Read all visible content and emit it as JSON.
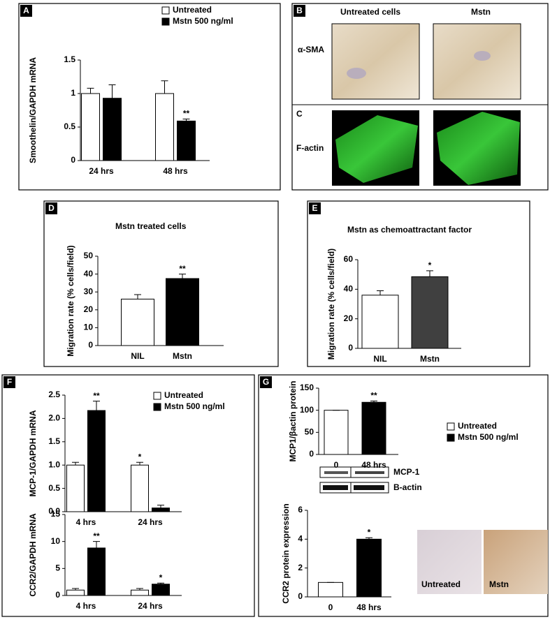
{
  "chart_data": [
    {
      "type": "bar",
      "ylabel": "Smoothelin/GAPDH mRNA",
      "categories": [
        "24 hrs",
        "48 hrs"
      ],
      "series": [
        {
          "name": "Untreated",
          "color": "#ffffff",
          "values": [
            1,
            1
          ],
          "errors": [
            0.08,
            0.19
          ],
          "stars": [
            null,
            null
          ]
        },
        {
          "name": "Mstn  500 ng/ml",
          "color": "#000000",
          "values": [
            0.93,
            0.59
          ],
          "errors": [
            0.2,
            0.03
          ],
          "stars": [
            null,
            "**"
          ]
        }
      ],
      "ylim": [
        0,
        1.5
      ],
      "yticks": [
        0,
        0.5,
        1,
        1.5
      ]
    },
    {
      "type": "bar",
      "title": "Mstn  treated cells",
      "ylabel": "Migration rate (% cells/field)",
      "categories": [
        "NIL",
        "Mstn"
      ],
      "values": [
        26,
        37.5
      ],
      "errors": [
        2.5,
        2.5
      ],
      "colors": [
        "#ffffff",
        "#000000"
      ],
      "stars": [
        null,
        "**"
      ],
      "ylim": [
        0,
        50
      ],
      "yticks": [
        0,
        10,
        20,
        30,
        40,
        50
      ]
    },
    {
      "type": "bar",
      "title": "Mstn  as chemoattractant factor",
      "ylabel": "Migration rate (% cells/field)",
      "categories": [
        "NIL",
        "Mstn"
      ],
      "values": [
        36,
        48.5
      ],
      "errors": [
        3,
        4
      ],
      "colors": [
        "#ffffff",
        "#404040"
      ],
      "stars": [
        null,
        "*"
      ],
      "ylim": [
        0,
        60
      ],
      "yticks": [
        0,
        20,
        40,
        60
      ]
    },
    {
      "type": "bar",
      "ylabel": "MCP-1/GAPDH  mRNA",
      "categories": [
        "4 hrs",
        "24 hrs"
      ],
      "series": [
        {
          "name": "Untreated",
          "color": "#ffffff",
          "values": [
            1,
            1
          ],
          "errors": [
            0.06,
            0.06
          ],
          "stars": [
            null,
            "*"
          ]
        },
        {
          "name": "Mstn  500 ng/ml",
          "color": "#000000",
          "values": [
            2.17,
            0.08
          ],
          "errors": [
            0.2,
            0.06
          ],
          "stars": [
            "**",
            null
          ]
        }
      ],
      "ylim": [
        0,
        2.5
      ],
      "yticks": [
        {
          "value": 0,
          "label": "0.0"
        },
        0.5,
        {
          "value": 1,
          "label": "1.0"
        },
        1.5,
        {
          "value": 2,
          "label": "2.0"
        },
        2.5
      ]
    },
    {
      "type": "bar",
      "ylabel": "CCR2/GAPDH  mRNA",
      "categories": [
        "4 hrs",
        "24 hrs"
      ],
      "series": [
        {
          "color": "#ffffff",
          "values": [
            1,
            1
          ],
          "errors": [
            0.3,
            0.3
          ],
          "stars": [
            null,
            null
          ]
        },
        {
          "color": "#000000",
          "values": [
            8.8,
            2.1
          ],
          "errors": [
            1.2,
            0.2
          ],
          "stars": [
            "**",
            "*"
          ]
        }
      ],
      "ylim": [
        0,
        15
      ],
      "yticks": [
        0,
        5,
        10,
        15
      ]
    },
    {
      "type": "bar",
      "ylabel": "MCP1/βactin protein",
      "categories": [
        "0",
        "48 hrs"
      ],
      "values": [
        100,
        118
      ],
      "errors": [
        0,
        3
      ],
      "colors": [
        "#ffffff",
        "#000000"
      ],
      "stars": [
        null,
        "**"
      ],
      "ylim": [
        0,
        150
      ],
      "yticks": [
        0,
        50,
        100,
        150
      ]
    },
    {
      "type": "bar",
      "ylabel": "CCR2  protein expression",
      "categories": [
        "0",
        "48 hrs"
      ],
      "values": [
        1,
        4
      ],
      "errors": [
        0,
        0.1
      ],
      "colors": [
        "#ffffff",
        "#000000"
      ],
      "stars": [
        null,
        "*"
      ],
      "ylim": [
        0,
        6
      ],
      "yticks": [
        0,
        2,
        4,
        6
      ]
    }
  ],
  "panels": {
    "letters": [
      "A",
      "B",
      "C",
      "D",
      "E",
      "F",
      "G"
    ],
    "B": {
      "columns": [
        "Untreated cells",
        "Mstn"
      ],
      "row": "α-SMA"
    },
    "C": {
      "row": "F-actin"
    },
    "G": {
      "blot": [
        "MCP-1",
        "B-actin"
      ],
      "images": [
        "Untreated",
        "Mstn"
      ],
      "legend": [
        {
          "name": "Untreated",
          "color": "#ffffff"
        },
        {
          "name": "Mstn  500 ng/ml",
          "color": "#000000"
        }
      ]
    }
  }
}
